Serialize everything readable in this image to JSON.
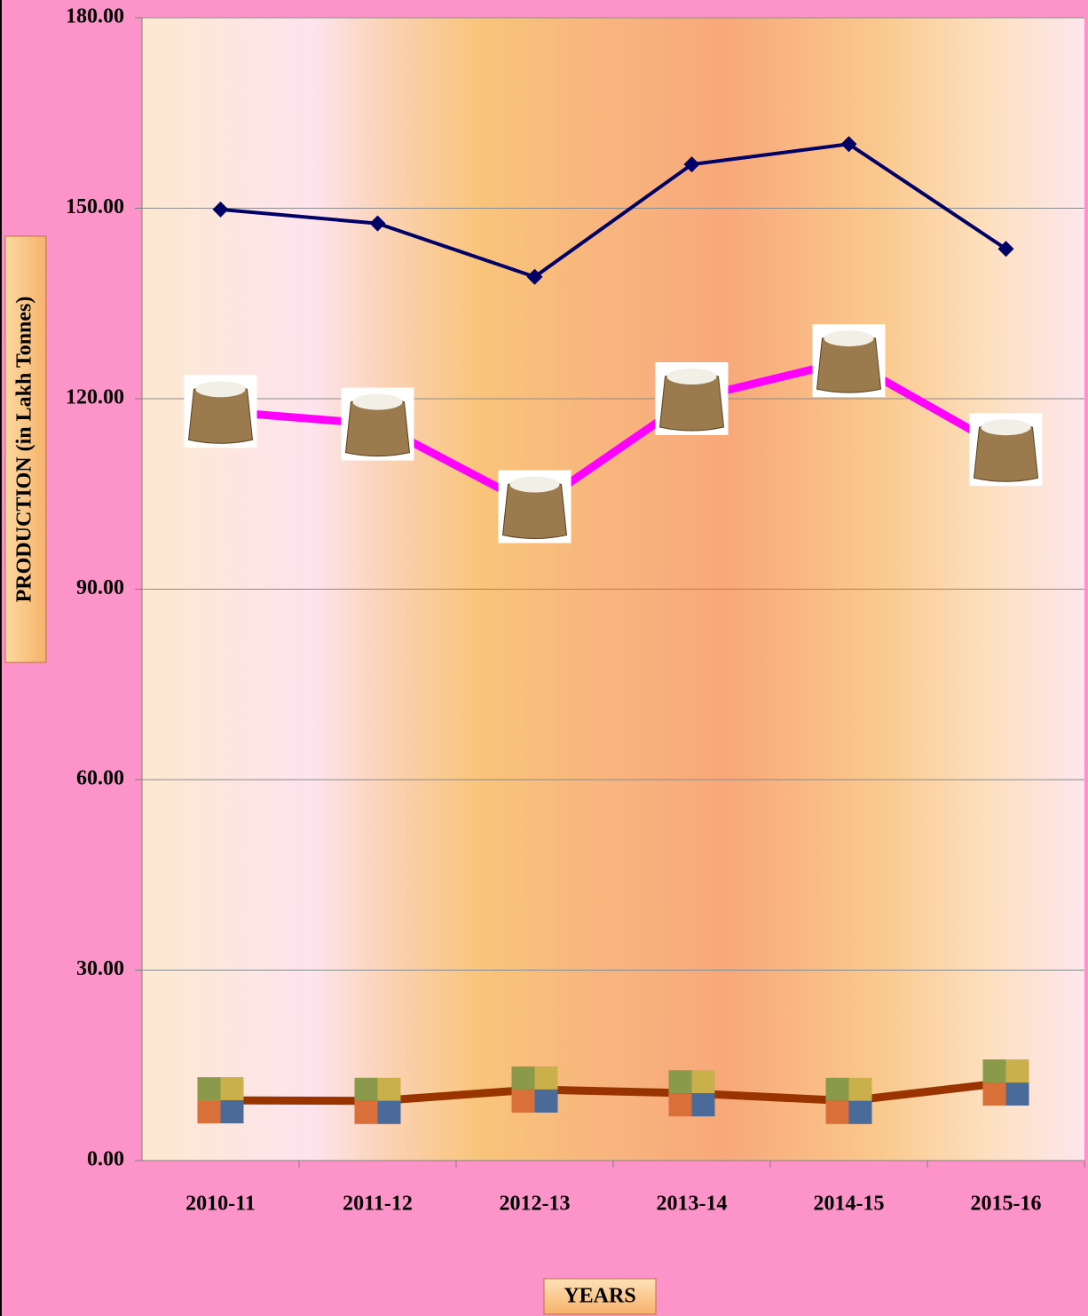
{
  "chart_data": {
    "type": "line",
    "x_label": "YEARS",
    "y_label": "PRODUCTION (in Lakh Tonnes)",
    "categories": [
      "2010-11",
      "2011-12",
      "2012-13",
      "2013-14",
      "2014-15",
      "2015-16"
    ],
    "series": [
      {
        "color": "#000066",
        "marker": "diamond",
        "values": [
          149.8,
          147.6,
          139.2,
          156.9,
          160.1,
          143.6
        ]
      },
      {
        "color": "#ff00ff",
        "marker": "sack",
        "values": [
          118,
          116,
          103,
          120,
          126,
          112
        ]
      },
      {
        "color": "#993300",
        "marker": "grain",
        "values": [
          9.5,
          9.4,
          11.2,
          10.6,
          9.4,
          12.3
        ]
      }
    ],
    "ylim": [
      0,
      180
    ],
    "yticks": [
      {
        "value": 0,
        "label": "0.00"
      },
      {
        "value": 30,
        "label": "30.00"
      },
      {
        "value": 60,
        "label": "60.00"
      },
      {
        "value": 90,
        "label": "90.00"
      },
      {
        "value": 120,
        "label": "120.00"
      },
      {
        "value": 150,
        "label": "150.00"
      },
      {
        "value": 180,
        "label": "180.00"
      }
    ],
    "grid": true
  }
}
